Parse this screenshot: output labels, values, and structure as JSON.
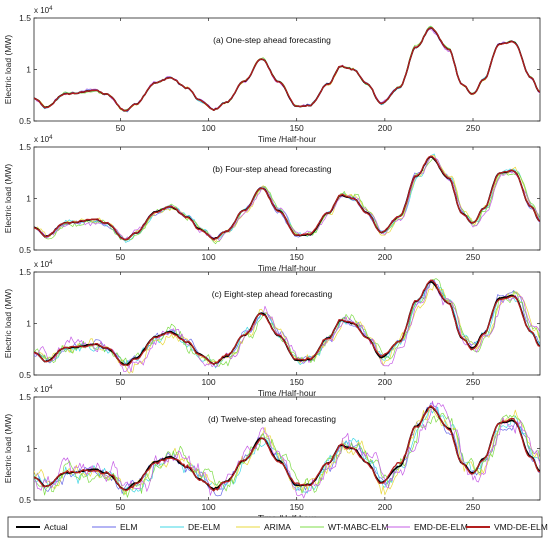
{
  "chart_data": {
    "type": "line",
    "xlim": [
      1,
      288
    ],
    "ylim": [
      0.5,
      1.5
    ],
    "xticks": [
      50,
      100,
      150,
      200,
      250
    ],
    "yticks": [
      0.5,
      1,
      1.5
    ],
    "ytick_labels": [
      "0.5",
      "1",
      "1.5"
    ],
    "y_multiplier": "x 10",
    "y_exponent": "4",
    "xlabel": "Time /Half-hour",
    "ylabel": "Electric load (MW)",
    "legend_position": "bottom",
    "actual_profile": {
      "x": [
        1,
        8,
        18,
        25,
        35,
        42,
        53,
        58,
        70,
        78,
        88,
        95,
        103,
        110,
        120,
        130,
        140,
        150,
        157,
        168,
        175,
        182,
        190,
        198,
        208,
        218,
        226,
        236,
        244,
        250,
        256,
        265,
        273,
        283,
        288
      ],
      "y": [
        0.72,
        0.63,
        0.76,
        0.77,
        0.8,
        0.76,
        0.6,
        0.66,
        0.87,
        0.92,
        0.82,
        0.7,
        0.61,
        0.68,
        0.88,
        1.1,
        0.88,
        0.64,
        0.65,
        0.86,
        1.03,
        1.0,
        0.86,
        0.67,
        0.82,
        1.22,
        1.4,
        1.2,
        0.85,
        0.76,
        0.9,
        1.25,
        1.27,
        0.92,
        0.78
      ]
    },
    "series": [
      {
        "name": "Actual",
        "color": "#000000"
      },
      {
        "name": "ELM",
        "color": "#6a6ae8"
      },
      {
        "name": "DE-ELM",
        "color": "#42d7e6"
      },
      {
        "name": "ARIMA",
        "color": "#e8d83c"
      },
      {
        "name": "WT-MABC-ELM",
        "color": "#7fdc4a"
      },
      {
        "name": "EMD-DE-ELM",
        "color": "#c65ee6"
      },
      {
        "name": "VMD-DE-ELM",
        "color": "#b21e1e"
      }
    ],
    "panels": [
      {
        "title": "(a) One-step ahead forecasting",
        "noise": 0.012
      },
      {
        "title": "(b) Four-step ahead forecasting",
        "noise": 0.03
      },
      {
        "title": "(c) Eight-step ahead forecasting",
        "noise": 0.06
      },
      {
        "title": "(d) Twelve-step ahead forecasting",
        "noise": 0.09
      }
    ]
  }
}
